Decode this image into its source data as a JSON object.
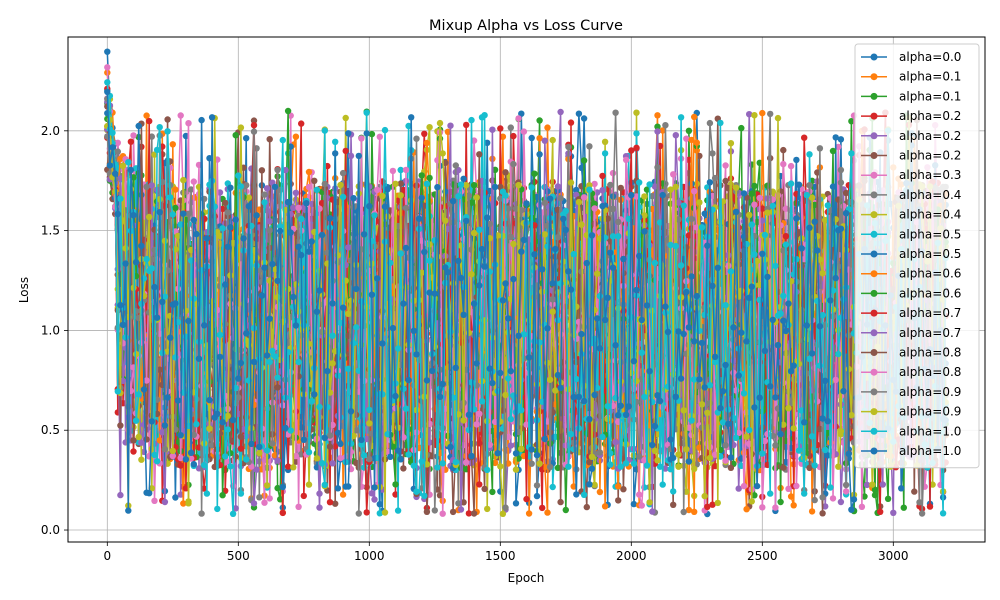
{
  "chart_data": {
    "type": "line",
    "title": "Mixup Alpha vs Loss Curve",
    "xlabel": "Epoch",
    "ylabel": "Loss",
    "xlim": [
      -150,
      3350
    ],
    "ylim": [
      -0.06,
      2.47
    ],
    "xticks": [
      0,
      500,
      1000,
      1500,
      2000,
      2500,
      3000
    ],
    "yticks": [
      0.0,
      0.5,
      1.0,
      1.5,
      2.0
    ],
    "ytick_labels": [
      "0.0",
      "0.5",
      "1.0",
      "1.5",
      "2.0"
    ],
    "grid": true,
    "legend": "top-right",
    "markers": "circle",
    "epochs": {
      "start": 0,
      "end": 3200,
      "step": 10
    },
    "series": [
      {
        "name": "alpha=0.0",
        "color": "#1f77b4",
        "start_loss": 2.35,
        "plateau_low": 0.35,
        "plateau_high": 1.75
      },
      {
        "name": "alpha=0.1",
        "color": "#ff7f0e",
        "start_loss": 2.37,
        "plateau_low": 0.3,
        "plateau_high": 1.75
      },
      {
        "name": "alpha=0.1",
        "color": "#2ca02c",
        "start_loss": 2.0,
        "plateau_low": 0.3,
        "plateau_high": 1.75
      },
      {
        "name": "alpha=0.2",
        "color": "#d62728",
        "start_loss": 2.1,
        "plateau_low": 0.3,
        "plateau_high": 1.75
      },
      {
        "name": "alpha=0.2",
        "color": "#9467bd",
        "start_loss": 2.2,
        "plateau_low": 0.3,
        "plateau_high": 1.75
      },
      {
        "name": "alpha=0.2",
        "color": "#8c564b",
        "start_loss": 2.0,
        "plateau_low": 0.3,
        "plateau_high": 1.75
      },
      {
        "name": "alpha=0.3",
        "color": "#e377c2",
        "start_loss": 2.25,
        "plateau_low": 0.3,
        "plateau_high": 1.75
      },
      {
        "name": "alpha=0.4",
        "color": "#7f7f7f",
        "start_loss": 2.05,
        "plateau_low": 0.3,
        "plateau_high": 1.75
      },
      {
        "name": "alpha=0.4",
        "color": "#bcbd22",
        "start_loss": 2.15,
        "plateau_low": 0.3,
        "plateau_high": 1.75
      },
      {
        "name": "alpha=0.5",
        "color": "#17becf",
        "start_loss": 2.28,
        "plateau_low": 0.3,
        "plateau_high": 1.75
      },
      {
        "name": "alpha=0.5",
        "color": "#1f77b4",
        "start_loss": 2.1,
        "plateau_low": 0.3,
        "plateau_high": 1.75
      },
      {
        "name": "alpha=0.6",
        "color": "#ff7f0e",
        "start_loss": 2.05,
        "plateau_low": 0.3,
        "plateau_high": 1.75
      },
      {
        "name": "alpha=0.6",
        "color": "#2ca02c",
        "start_loss": 2.0,
        "plateau_low": 0.3,
        "plateau_high": 1.75
      },
      {
        "name": "alpha=0.7",
        "color": "#d62728",
        "start_loss": 2.1,
        "plateau_low": 0.3,
        "plateau_high": 1.75
      },
      {
        "name": "alpha=0.7",
        "color": "#9467bd",
        "start_loss": 2.0,
        "plateau_low": 0.3,
        "plateau_high": 1.75
      },
      {
        "name": "alpha=0.8",
        "color": "#8c564b",
        "start_loss": 1.95,
        "plateau_low": 0.3,
        "plateau_high": 1.75
      },
      {
        "name": "alpha=0.8",
        "color": "#e377c2",
        "start_loss": 2.2,
        "plateau_low": 0.3,
        "plateau_high": 1.75
      },
      {
        "name": "alpha=0.9",
        "color": "#7f7f7f",
        "start_loss": 2.0,
        "plateau_low": 0.3,
        "plateau_high": 1.75
      },
      {
        "name": "alpha=0.9",
        "color": "#bcbd22",
        "start_loss": 2.15,
        "plateau_low": 0.3,
        "plateau_high": 1.75
      },
      {
        "name": "alpha=1.0",
        "color": "#17becf",
        "start_loss": 2.2,
        "plateau_low": 0.3,
        "plateau_high": 1.75
      },
      {
        "name": "alpha=1.0",
        "color": "#1f77b4",
        "start_loss": 2.1,
        "plateau_low": 0.35,
        "plateau_high": 1.75
      }
    ]
  }
}
